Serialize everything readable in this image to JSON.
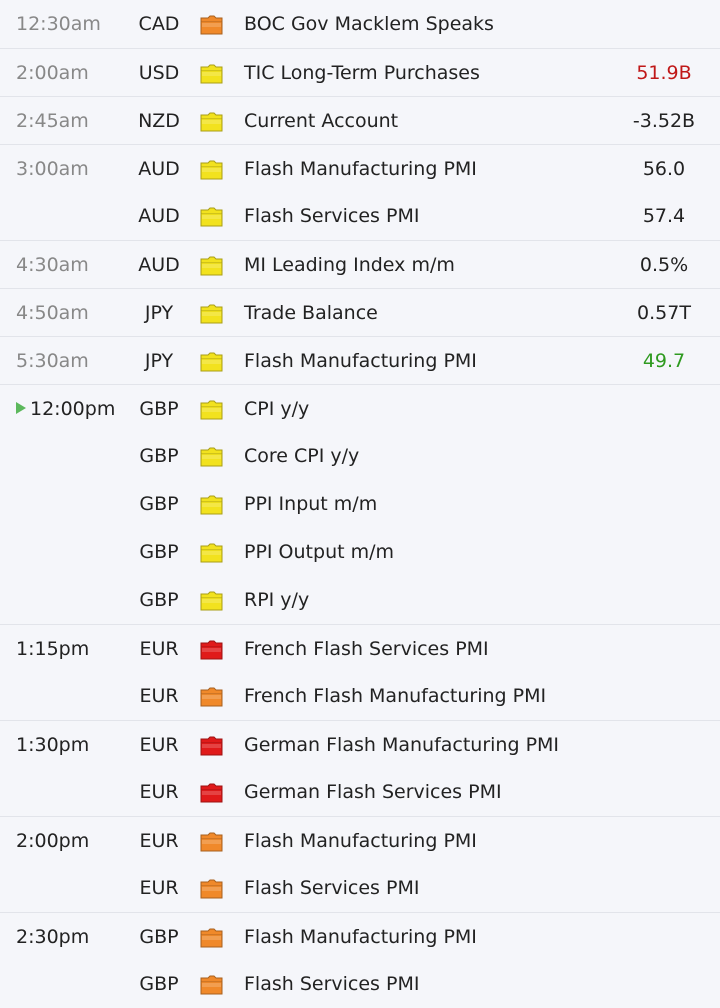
{
  "colors": {
    "impact_high": "#e01a1a",
    "impact_medium": "#f0892a",
    "impact_low": "#f2e21e",
    "actual_red": "#c01818",
    "actual_green": "#2e9a1f",
    "now_marker": "#5cb85c"
  },
  "rows": [
    {
      "time": "12:30am",
      "currency": "CAD",
      "impact": "medium",
      "event": "BOC Gov Macklem Speaks",
      "actual": ""
    },
    {
      "time": "2:00am",
      "currency": "USD",
      "impact": "low",
      "event": "TIC Long-Term Purchases",
      "actual": "51.9B"
    },
    {
      "time": "2:45am",
      "currency": "NZD",
      "impact": "low",
      "event": "Current Account",
      "actual": "-3.52B"
    },
    {
      "time": "3:00am",
      "currency": "AUD",
      "impact": "low",
      "event": "Flash Manufacturing PMI",
      "actual": "56.0"
    },
    {
      "time": "",
      "currency": "AUD",
      "impact": "low",
      "event": "Flash Services PMI",
      "actual": "57.4"
    },
    {
      "time": "4:30am",
      "currency": "AUD",
      "impact": "low",
      "event": "MI Leading Index m/m",
      "actual": "0.5%"
    },
    {
      "time": "4:50am",
      "currency": "JPY",
      "impact": "low",
      "event": "Trade Balance",
      "actual": "0.57T"
    },
    {
      "time": "5:30am",
      "currency": "JPY",
      "impact": "low",
      "event": "Flash Manufacturing PMI",
      "actual": "49.7"
    },
    {
      "time": "12:00pm",
      "currency": "GBP",
      "impact": "low",
      "event": "CPI y/y",
      "actual": ""
    },
    {
      "time": "",
      "currency": "GBP",
      "impact": "low",
      "event": "Core CPI y/y",
      "actual": ""
    },
    {
      "time": "",
      "currency": "GBP",
      "impact": "low",
      "event": "PPI Input m/m",
      "actual": ""
    },
    {
      "time": "",
      "currency": "GBP",
      "impact": "low",
      "event": "PPI Output m/m",
      "actual": ""
    },
    {
      "time": "",
      "currency": "GBP",
      "impact": "low",
      "event": "RPI y/y",
      "actual": ""
    },
    {
      "time": "1:15pm",
      "currency": "EUR",
      "impact": "high",
      "event": "French Flash Services PMI",
      "actual": ""
    },
    {
      "time": "",
      "currency": "EUR",
      "impact": "medium",
      "event": "French Flash Manufacturing PMI",
      "actual": ""
    },
    {
      "time": "1:30pm",
      "currency": "EUR",
      "impact": "high",
      "event": "German Flash Manufacturing PMI",
      "actual": ""
    },
    {
      "time": "",
      "currency": "EUR",
      "impact": "high",
      "event": "German Flash Services PMI",
      "actual": ""
    },
    {
      "time": "2:00pm",
      "currency": "EUR",
      "impact": "medium",
      "event": "Flash Manufacturing PMI",
      "actual": ""
    },
    {
      "time": "",
      "currency": "EUR",
      "impact": "medium",
      "event": "Flash Services PMI",
      "actual": ""
    },
    {
      "time": "2:30pm",
      "currency": "GBP",
      "impact": "medium",
      "event": "Flash Manufacturing PMI",
      "actual": ""
    },
    {
      "time": "",
      "currency": "GBP",
      "impact": "medium",
      "event": "Flash Services PMI",
      "actual": ""
    }
  ]
}
